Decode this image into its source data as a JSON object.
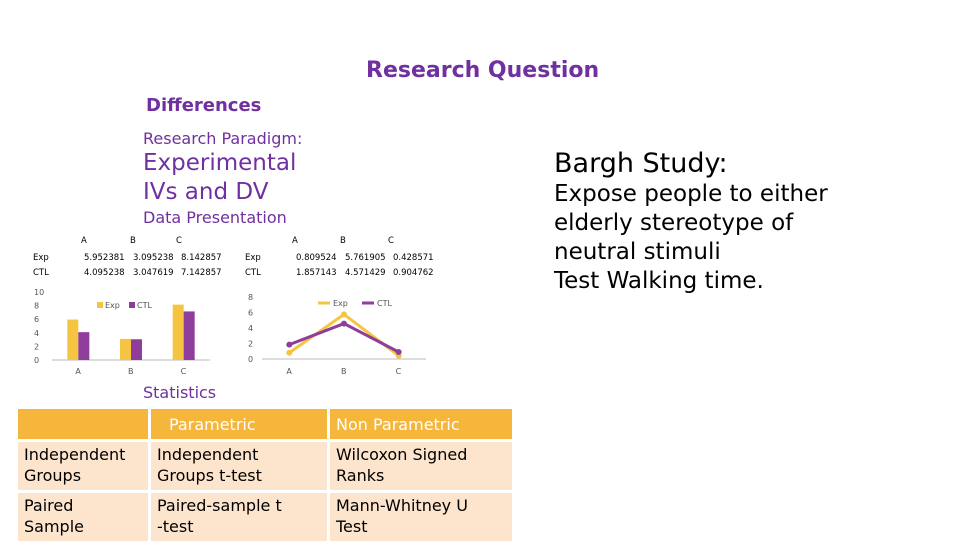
{
  "slide": {
    "title": "Research Question",
    "section": "Differences",
    "paradigm_label": "Research Paradigm:",
    "paradigm_line1": "Experimental",
    "paradigm_line2": "IVs and DV",
    "data_presentation": "Data Presentation",
    "statistics_label": "Statistics"
  },
  "bargh": {
    "title": "Bargh Study:",
    "lines": [
      "Expose people to either",
      "elderly stereotype of",
      "neutral stimuli",
      "Test Walking time."
    ]
  },
  "table_left": {
    "headers": [
      "A",
      "B",
      "C"
    ],
    "rows": [
      {
        "label": "Exp",
        "values": [
          "5.952381",
          "3.095238",
          "8.142857"
        ]
      },
      {
        "label": "CTL",
        "values": [
          "4.095238",
          "3.047619",
          "7.142857"
        ]
      }
    ]
  },
  "table_right": {
    "headers": [
      "A",
      "B",
      "C"
    ],
    "rows": [
      {
        "label": "Exp",
        "values": [
          "0.809524",
          "5.761905",
          "0.428571"
        ]
      },
      {
        "label": "CTL",
        "values": [
          "1.857143",
          "4.571429",
          "0.904762"
        ]
      }
    ]
  },
  "chart_data": [
    {
      "type": "bar",
      "categories": [
        "A",
        "B",
        "C"
      ],
      "series": [
        {
          "name": "Exp",
          "values": [
            5.952381,
            3.095238,
            8.142857
          ],
          "color": "#f5c542"
        },
        {
          "name": "CTL",
          "values": [
            4.095238,
            3.047619,
            7.142857
          ],
          "color": "#8e3d9b"
        }
      ],
      "ylim": [
        0,
        10
      ],
      "yticks": [
        "0",
        "2",
        "4",
        "6",
        "8",
        "10"
      ],
      "legend": "top-center"
    },
    {
      "type": "line",
      "categories": [
        "A",
        "B",
        "C"
      ],
      "series": [
        {
          "name": "Exp",
          "values": [
            0.809524,
            5.761905,
            0.428571
          ],
          "color": "#f5c542"
        },
        {
          "name": "CTL",
          "values": [
            1.857143,
            4.571429,
            0.904762
          ],
          "color": "#8e3d9b"
        }
      ],
      "ylim": [
        0,
        8
      ],
      "yticks": [
        "0",
        "2",
        "4",
        "6",
        "8"
      ],
      "legend": "top-right"
    }
  ],
  "stats_table": {
    "header": [
      "",
      "Parametric",
      "Non Parametric"
    ],
    "rows": [
      {
        "label_l1": "Independent",
        "label_l2": "Groups",
        "param_l1": "Independent",
        "param_l2": "Groups t-test",
        "nonparam_l1": "Wilcoxon Signed",
        "nonparam_l2": "Ranks"
      },
      {
        "label_l1": "Paired",
        "label_l2": "Sample",
        "param_l1": "Paired-sample t",
        "param_l2": "-test",
        "nonparam_l1": "Mann-Whitney U",
        "nonparam_l2": "Test"
      }
    ]
  },
  "colors": {
    "accent": "#7030a0",
    "header_fill": "#f5b63b",
    "row_fill": "#fde4cd"
  }
}
